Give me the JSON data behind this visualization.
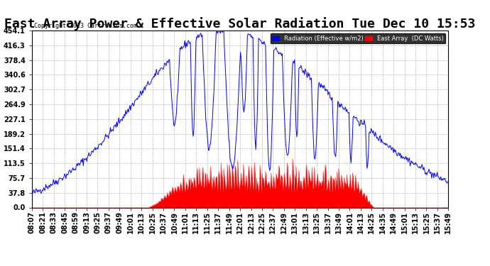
{
  "title": "East Array Power & Effective Solar Radiation Tue Dec 10 15:53",
  "copyright": "Copyright 2013 Cartronics.com",
  "legend_blue": "Radiation (Effective w/m2)",
  "legend_red": "East Array  (DC Watts)",
  "ymax": 454.1,
  "ymin": 0.0,
  "yticks": [
    0.0,
    37.8,
    75.7,
    113.5,
    151.4,
    189.2,
    227.1,
    264.9,
    302.7,
    340.6,
    378.4,
    416.3,
    454.1
  ],
  "background_color": "#ffffff",
  "plot_bg_color": "#ffffff",
  "grid_color": "#aaaaaa",
  "blue_color": "#0000ff",
  "red_color": "#ff0000",
  "title_fontsize": 13,
  "tick_fontsize": 7,
  "n_points": 600,
  "time_labels": [
    "08:07",
    "08:21",
    "08:33",
    "08:45",
    "08:59",
    "09:13",
    "09:25",
    "09:37",
    "09:49",
    "10:01",
    "10:13",
    "10:25",
    "10:37",
    "10:49",
    "11:01",
    "11:13",
    "11:25",
    "11:37",
    "11:49",
    "12:01",
    "12:13",
    "12:25",
    "12:37",
    "12:49",
    "13:01",
    "13:13",
    "13:25",
    "13:37",
    "13:49",
    "14:01",
    "14:13",
    "14:25",
    "14:35",
    "14:49",
    "15:01",
    "15:13",
    "15:25",
    "15:37",
    "15:49"
  ]
}
